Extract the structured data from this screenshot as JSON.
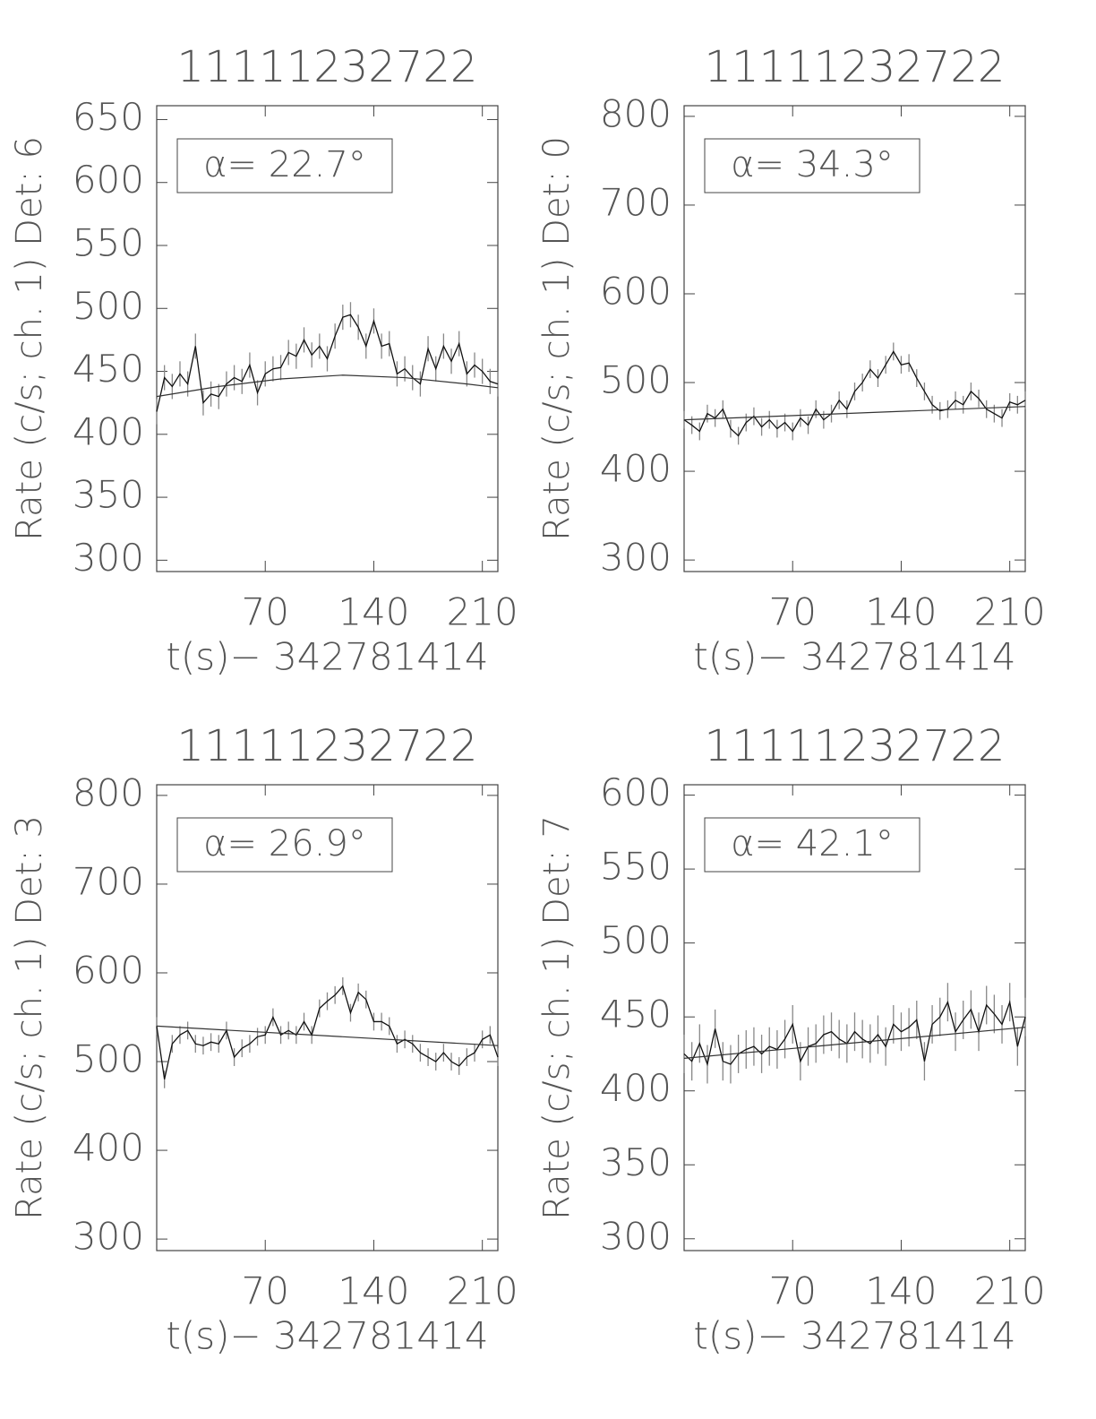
{
  "chart_data": [
    {
      "type": "errorline",
      "title": "11111232722",
      "y_label": "Rate (c/s; ch. 1) Det: 6",
      "x_label": "t(s)− 342781414",
      "annotation": "α= 22.7°",
      "x": [
        0,
        5,
        10,
        15,
        20,
        25,
        30,
        35,
        40,
        45,
        50,
        55,
        60,
        65,
        70,
        75,
        80,
        85,
        90,
        95,
        100,
        105,
        110,
        115,
        120,
        125,
        130,
        135,
        140,
        145,
        150,
        155,
        160,
        165,
        170,
        175,
        180,
        185,
        190,
        195,
        200,
        205,
        210,
        215,
        220
      ],
      "values": [
        418,
        445,
        438,
        448,
        440,
        470,
        425,
        432,
        430,
        440,
        445,
        442,
        455,
        433,
        448,
        452,
        453,
        465,
        462,
        475,
        463,
        470,
        460,
        478,
        493,
        495,
        485,
        470,
        490,
        470,
        472,
        448,
        452,
        445,
        440,
        468,
        452,
        470,
        458,
        472,
        448,
        455,
        450,
        442,
        440
      ],
      "error": 10,
      "fit": {
        "x": [
          0,
          40,
          80,
          120,
          160,
          200,
          220
        ],
        "values": [
          430,
          438,
          444,
          447,
          445,
          440,
          437
        ]
      },
      "xlim": [
        0,
        220
      ],
      "xticks": [
        70,
        140,
        210
      ],
      "ylim": [
        291,
        661
      ],
      "yticks": [
        300,
        350,
        400,
        450,
        500,
        550,
        600,
        650
      ]
    },
    {
      "type": "errorline",
      "title": "11111232722",
      "y_label": "Rate (c/s; ch. 1) Det: 0",
      "x_label": "t(s)− 342781414",
      "annotation": "α= 34.3°",
      "x": [
        0,
        5,
        10,
        15,
        20,
        25,
        30,
        35,
        40,
        45,
        50,
        55,
        60,
        65,
        70,
        75,
        80,
        85,
        90,
        95,
        100,
        105,
        110,
        115,
        120,
        125,
        130,
        135,
        140,
        145,
        150,
        155,
        160,
        165,
        170,
        175,
        180,
        185,
        190,
        195,
        200,
        205,
        210,
        215,
        220
      ],
      "values": [
        458,
        452,
        445,
        465,
        460,
        470,
        448,
        440,
        455,
        462,
        450,
        458,
        448,
        455,
        445,
        460,
        452,
        470,
        458,
        465,
        480,
        470,
        490,
        500,
        515,
        505,
        520,
        535,
        520,
        522,
        505,
        490,
        475,
        468,
        470,
        480,
        475,
        490,
        482,
        470,
        465,
        460,
        478,
        475,
        480
      ],
      "error": 10,
      "fit": {
        "x": [
          0,
          220
        ],
        "values": [
          458,
          473
        ]
      },
      "xlim": [
        0,
        220
      ],
      "xticks": [
        70,
        140,
        210
      ],
      "ylim": [
        287,
        812
      ],
      "yticks": [
        300,
        400,
        500,
        600,
        700,
        800
      ]
    },
    {
      "type": "errorline",
      "title": "11111232722",
      "y_label": "Rate (c/s; ch. 1) Det: 3",
      "x_label": "t(s)− 342781414",
      "annotation": "α= 26.9°",
      "x": [
        0,
        5,
        10,
        15,
        20,
        25,
        30,
        35,
        40,
        45,
        50,
        55,
        60,
        65,
        70,
        75,
        80,
        85,
        90,
        95,
        100,
        105,
        110,
        115,
        120,
        125,
        130,
        135,
        140,
        145,
        150,
        155,
        160,
        165,
        170,
        175,
        180,
        185,
        190,
        195,
        200,
        205,
        210,
        215,
        220
      ],
      "values": [
        540,
        480,
        520,
        530,
        535,
        520,
        518,
        522,
        520,
        535,
        505,
        515,
        520,
        528,
        530,
        550,
        530,
        535,
        530,
        545,
        530,
        560,
        568,
        575,
        585,
        555,
        578,
        570,
        545,
        545,
        540,
        520,
        525,
        520,
        510,
        505,
        500,
        510,
        500,
        495,
        505,
        510,
        525,
        530,
        505
      ],
      "error": 10,
      "fit": {
        "x": [
          0,
          220
        ],
        "values": [
          540,
          518
        ]
      },
      "xlim": [
        0,
        220
      ],
      "xticks": [
        70,
        140,
        210
      ],
      "ylim": [
        287,
        812
      ],
      "yticks": [
        300,
        400,
        500,
        600,
        700,
        800
      ]
    },
    {
      "type": "errorline",
      "title": "11111232722",
      "y_label": "Rate (c/s; ch. 1) Det: 7",
      "x_label": "t(s)− 342781414",
      "annotation": "α= 42.1°",
      "x": [
        0,
        5,
        10,
        15,
        20,
        25,
        30,
        35,
        40,
        45,
        50,
        55,
        60,
        65,
        70,
        75,
        80,
        85,
        90,
        95,
        100,
        105,
        110,
        115,
        120,
        125,
        130,
        135,
        140,
        145,
        150,
        155,
        160,
        165,
        170,
        175,
        180,
        185,
        190,
        195,
        200,
        205,
        210,
        215,
        220
      ],
      "values": [
        425,
        420,
        432,
        418,
        442,
        420,
        418,
        425,
        428,
        430,
        425,
        430,
        428,
        435,
        445,
        420,
        430,
        432,
        438,
        440,
        435,
        432,
        440,
        435,
        432,
        438,
        430,
        445,
        440,
        443,
        448,
        420,
        445,
        450,
        460,
        440,
        448,
        455,
        440,
        458,
        452,
        445,
        460,
        430,
        450
      ],
      "error": 13,
      "fit": {
        "x": [
          0,
          220
        ],
        "values": [
          422,
          443
        ]
      },
      "xlim": [
        0,
        220
      ],
      "xticks": [
        70,
        140,
        210
      ],
      "ylim": [
        292,
        607
      ],
      "yticks": [
        300,
        350,
        400,
        450,
        500,
        550,
        600
      ]
    }
  ]
}
